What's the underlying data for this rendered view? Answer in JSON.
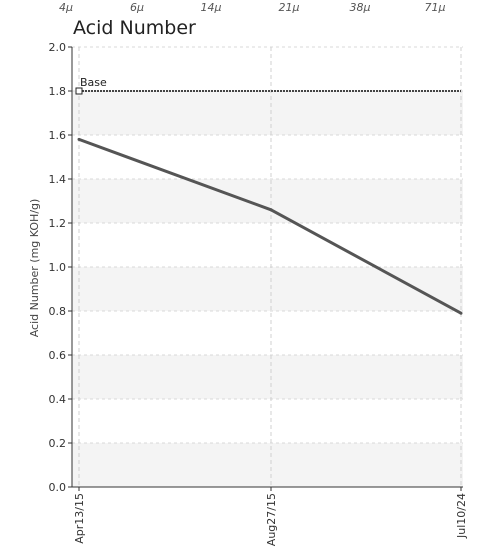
{
  "top_scale": {
    "labels": [
      "4μ",
      "6μ",
      "14μ",
      "21μ",
      "38μ",
      "71μ"
    ]
  },
  "chart_data": {
    "type": "line",
    "title": "Acid Number",
    "ylabel": "Acid Number (mg KOH/g)",
    "xlabel": "",
    "categories": [
      "Apr13/15",
      "Aug27/15",
      "Jul10/24"
    ],
    "ylim": [
      0,
      2.0
    ],
    "yticks": [
      0.0,
      0.2,
      0.4,
      0.6,
      0.8,
      1.0,
      1.2,
      1.4,
      1.6,
      1.8,
      2.0
    ],
    "ytick_labels": [
      "0.0",
      "0.2",
      "0.4",
      "0.6",
      "0.8",
      "1.0",
      "1.2",
      "1.4",
      "1.6",
      "1.8",
      "2.0"
    ],
    "series": [
      {
        "values": [
          1.58,
          1.26,
          0.79
        ],
        "color": "#555555"
      }
    ],
    "reference_line": {
      "name": "Base",
      "value": 1.8,
      "color": "#444444",
      "style": "dotted"
    },
    "grid": true,
    "band_color": "#f4f4f4"
  }
}
